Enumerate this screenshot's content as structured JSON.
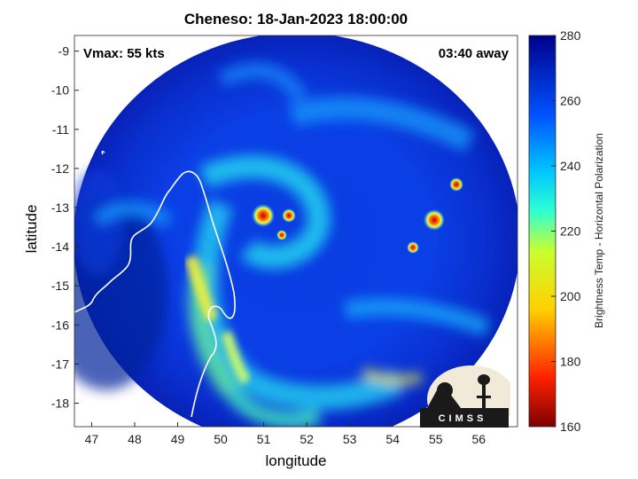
{
  "title": "Cheneso: 18-Jan-2023 18:00:00",
  "annotations": {
    "vmax": "Vmax: 55 kts",
    "time_away": "03:40 away"
  },
  "logo_text": "CIMSS",
  "chart_data": {
    "type": "heatmap",
    "title": "Cheneso: 18-Jan-2023 18:00:00",
    "xlabel": "longitude",
    "ylabel": "latitude",
    "xlim": [
      46.6,
      56.9
    ],
    "ylim": [
      -18.6,
      -8.6
    ],
    "xticks": [
      47,
      48,
      49,
      50,
      51,
      52,
      53,
      54,
      55,
      56
    ],
    "yticks": [
      -9,
      -10,
      -11,
      -12,
      -13,
      -14,
      -15,
      -16,
      -17,
      -18
    ],
    "colorbar": {
      "label": "Brightness Temp - Horizontal Polarization",
      "range": [
        160,
        280
      ],
      "ticks": [
        280,
        260,
        240,
        220,
        200,
        180,
        160
      ]
    },
    "colors": {
      "cold": "#8b0000",
      "low": "#ff3000",
      "mid": "#ffff00",
      "midhigh": "#00e0e0",
      "high": "#0070ff",
      "warm": "#00008b"
    }
  }
}
